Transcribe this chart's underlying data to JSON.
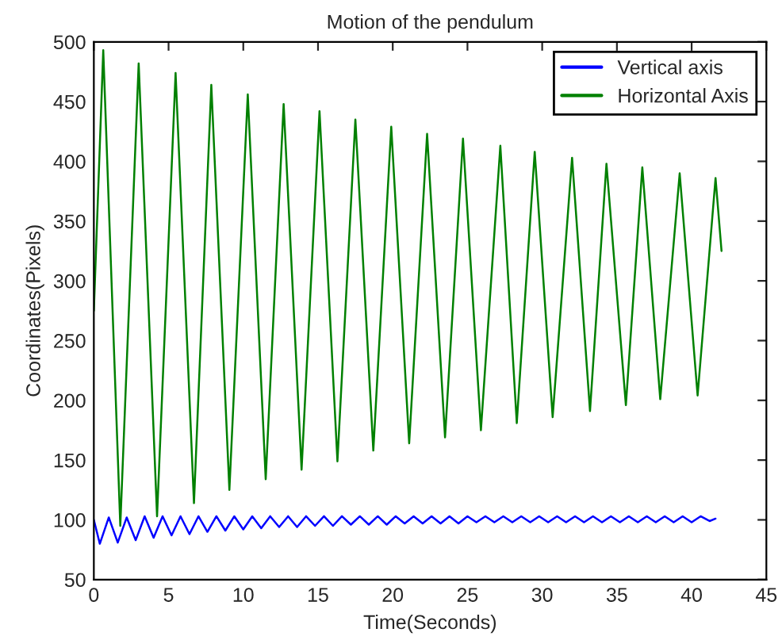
{
  "chart_data": {
    "type": "line",
    "title": "Motion of the pendulum",
    "xlabel": "Time(Seconds)",
    "ylabel": "Coordinates(Pixels)",
    "xlim": [
      0,
      45
    ],
    "xticks": [
      0,
      5,
      10,
      15,
      20,
      25,
      30,
      35,
      40,
      45
    ],
    "ylim": [
      50,
      500
    ],
    "yticks": [
      50,
      100,
      150,
      200,
      250,
      300,
      350,
      400,
      450,
      500
    ],
    "grid": false,
    "legend": "top right",
    "marker": "none",
    "line_style": "solid",
    "series": [
      {
        "name": "Vertical axis",
        "color": "#0000ff",
        "x": [
          0,
          0.4,
          1.0,
          1.6,
          2.2,
          2.8,
          3.4,
          4.0,
          4.6,
          5.2,
          5.8,
          6.4,
          7.0,
          7.6,
          8.2,
          8.8,
          9.4,
          10.0,
          10.6,
          11.2,
          11.8,
          12.4,
          13.0,
          13.6,
          14.2,
          14.8,
          15.4,
          16.0,
          16.6,
          17.2,
          17.8,
          18.4,
          19.0,
          19.6,
          20.2,
          20.8,
          21.4,
          22.0,
          22.6,
          23.2,
          23.8,
          24.4,
          25.0,
          25.6,
          26.2,
          26.8,
          27.4,
          28.0,
          28.6,
          29.2,
          29.8,
          30.4,
          31.0,
          31.6,
          32.2,
          32.8,
          33.4,
          34.0,
          34.6,
          35.2,
          35.8,
          36.4,
          37.0,
          37.6,
          38.2,
          38.8,
          39.4,
          40.0,
          40.6,
          41.2,
          41.6
        ],
        "values": [
          100,
          80,
          102,
          81,
          102,
          83,
          103,
          85,
          103,
          87,
          103,
          88,
          103,
          90,
          103,
          91,
          103,
          92,
          103,
          93,
          103,
          94,
          103,
          94,
          103,
          95,
          103,
          95,
          103,
          96,
          103,
          96,
          103,
          96,
          103,
          97,
          103,
          97,
          103,
          97,
          103,
          97,
          103,
          98,
          103,
          98,
          103,
          98,
          103,
          98,
          103,
          98,
          103,
          98,
          103,
          98,
          103,
          98,
          103,
          98,
          103,
          98,
          103,
          98,
          103,
          98,
          103,
          98,
          103,
          99,
          101
        ]
      },
      {
        "name": "Horizontal Axis",
        "color": "#008000",
        "x": [
          0,
          0.63,
          1.77,
          3.0,
          4.23,
          5.47,
          6.7,
          7.86,
          9.07,
          10.3,
          11.5,
          12.7,
          13.9,
          15.1,
          16.3,
          17.5,
          18.7,
          19.9,
          21.1,
          22.3,
          23.5,
          24.7,
          25.9,
          27.2,
          28.3,
          29.5,
          30.7,
          32.0,
          33.2,
          34.3,
          35.6,
          36.7,
          37.9,
          39.2,
          40.4,
          41.6,
          42.0
        ],
        "values": [
          275,
          493,
          95,
          482,
          103,
          474,
          114,
          464,
          125,
          456,
          134,
          448,
          142,
          442,
          149,
          435,
          158,
          429,
          164,
          423,
          169,
          419,
          175,
          413,
          181,
          408,
          186,
          403,
          191,
          398,
          196,
          395,
          201,
          390,
          204,
          386,
          325
        ]
      }
    ]
  }
}
